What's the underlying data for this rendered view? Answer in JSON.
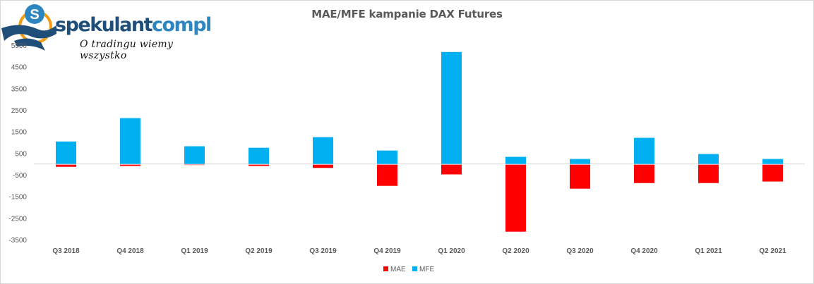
{
  "logo": {
    "name_part1": "spekulant",
    "name_part2": "compl",
    "tagline": "O tradingu wiemy wszystko"
  },
  "chart_data": {
    "type": "bar",
    "title": "MAE/MFE kampanie DAX Futures",
    "xlabel": "",
    "ylabel": "",
    "ylim": [
      -3500,
      5500
    ],
    "yticks": [
      5500,
      4500,
      3500,
      2500,
      1500,
      500,
      -500,
      -1500,
      -2500,
      -3500
    ],
    "grid": false,
    "legend_position": "bottom",
    "stacked": true,
    "categories": [
      "Q3 2018",
      "Q4 2018",
      "Q1 2019",
      "Q2 2019",
      "Q3 2019",
      "Q4 2019",
      "Q1 2020",
      "Q2 2020",
      "Q3 2020",
      "Q4 2020",
      "Q1 2021",
      "Q2 2021"
    ],
    "series": [
      {
        "name": "MAE",
        "color": "#ff0000",
        "values": [
          -100,
          -60,
          -10,
          -60,
          -150,
          -980,
          -450,
          -3100,
          -1110,
          -850,
          -850,
          -780
        ]
      },
      {
        "name": "MFE",
        "color": "#00b0f0",
        "values": [
          1040,
          2120,
          820,
          750,
          1240,
          620,
          5180,
          330,
          230,
          1210,
          460,
          230
        ]
      }
    ]
  }
}
